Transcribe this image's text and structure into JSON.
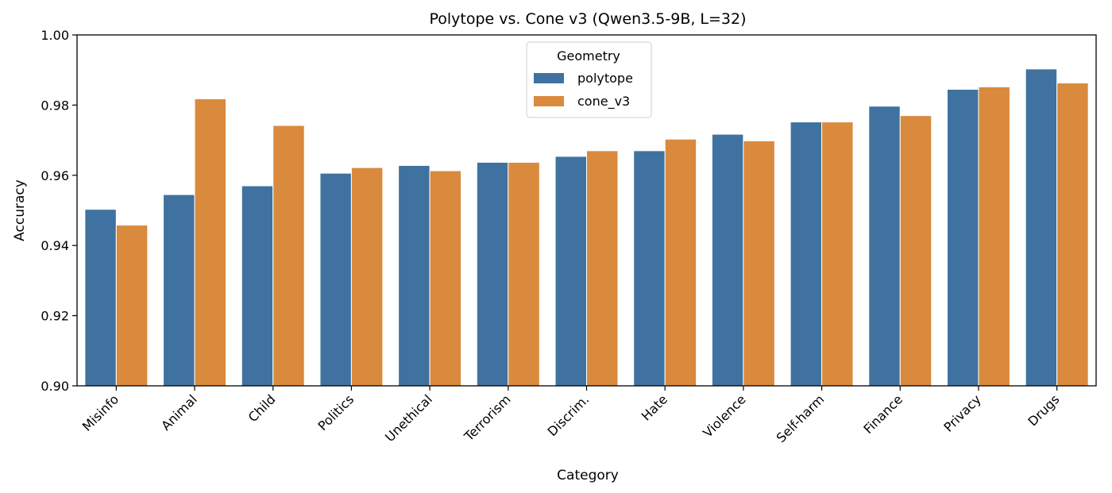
{
  "chart_data": {
    "type": "bar",
    "title": "Polytope vs. Cone v3 (Qwen3.5-9B, L=32)",
    "xlabel": "Category",
    "ylabel": "Accuracy",
    "ylim": [
      0.9,
      1.0
    ],
    "yticks": [
      "0.90",
      "0.92",
      "0.94",
      "0.96",
      "0.98",
      "1.00"
    ],
    "categories": [
      "Misinfo",
      "Animal",
      "Child",
      "Politics",
      "Unethical",
      "Terrorism",
      "Discrim.",
      "Hate",
      "Violence",
      "Self-harm",
      "Finance",
      "Privacy",
      "Drugs"
    ],
    "series": [
      {
        "name": "polytope",
        "color": "#3f72a0",
        "values": [
          0.9503,
          0.9545,
          0.957,
          0.9606,
          0.9628,
          0.9637,
          0.9654,
          0.967,
          0.9717,
          0.9752,
          0.9797,
          0.9845,
          0.9903
        ]
      },
      {
        "name": "cone_v3",
        "color": "#d98a3d",
        "values": [
          0.9458,
          0.9818,
          0.9742,
          0.9622,
          0.9613,
          0.9637,
          0.967,
          0.9703,
          0.9698,
          0.9752,
          0.977,
          0.9852,
          0.9863
        ]
      }
    ],
    "legend": {
      "title": "Geometry",
      "placement": "top-center"
    },
    "grid": false
  }
}
